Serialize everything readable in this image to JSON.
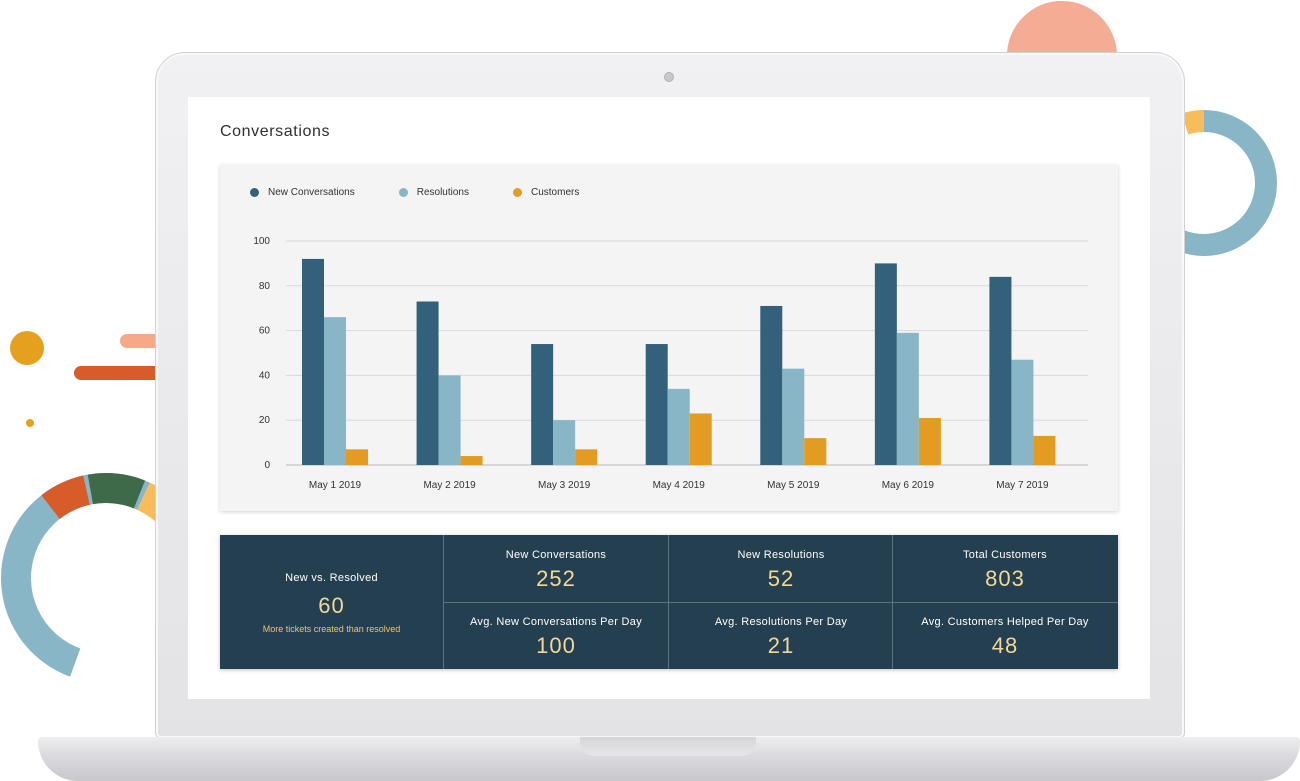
{
  "page": {
    "title": "Conversations"
  },
  "legend": [
    {
      "label": "New Conversations",
      "color": "#33617b"
    },
    {
      "label": "Resolutions",
      "color": "#88b6c6"
    },
    {
      "label": "Customers",
      "color": "#e39b21"
    }
  ],
  "chart_data": {
    "type": "bar",
    "categories": [
      "May 1 2019",
      "May 2 2019",
      "May 3 2019",
      "May 4 2019",
      "May 5 2019",
      "May 6 2019",
      "May 7 2019"
    ],
    "series": [
      {
        "name": "New Conversations",
        "color": "#33617b",
        "values": [
          92,
          73,
          54,
          54,
          71,
          90,
          84
        ]
      },
      {
        "name": "Resolutions",
        "color": "#88b6c6",
        "values": [
          66,
          40,
          20,
          34,
          43,
          59,
          47
        ]
      },
      {
        "name": "Customers",
        "color": "#e39b21",
        "values": [
          7,
          4,
          7,
          23,
          12,
          21,
          13
        ]
      }
    ],
    "yticks": [
      0,
      20,
      40,
      60,
      80,
      100
    ],
    "ylim": [
      0,
      100
    ],
    "grid": true,
    "legend_position": "top-left"
  },
  "stats": {
    "summary": {
      "label": "New vs. Resolved",
      "value": "60",
      "note": "More tickets created than resolved"
    },
    "cells": [
      {
        "label": "New Conversations",
        "value": "252"
      },
      {
        "label": "New Resolutions",
        "value": "52"
      },
      {
        "label": "Total Customers",
        "value": "803"
      },
      {
        "label": "Avg. New Conversations Per Day",
        "value": "100"
      },
      {
        "label": "Avg. Resolutions Per Day",
        "value": "21"
      },
      {
        "label": "Avg. Customers Helped Per Day",
        "value": "48"
      }
    ]
  }
}
